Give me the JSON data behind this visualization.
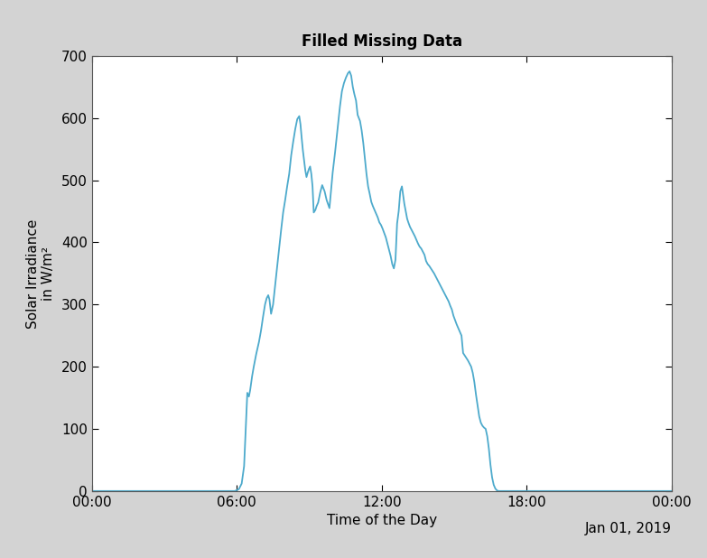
{
  "title": "Filled Missing Data",
  "xlabel": "Time of the Day",
  "ylabel": "Solar Irradiance\nin W/m²",
  "date_label": "Jan 01, 2019",
  "xlim": [
    0,
    1440
  ],
  "ylim": [
    0,
    700
  ],
  "xticks": [
    0,
    360,
    720,
    1080,
    1440
  ],
  "xtick_labels": [
    "00:00",
    "06:00",
    "12:00",
    "18:00",
    "00:00"
  ],
  "yticks": [
    0,
    100,
    200,
    300,
    400,
    500,
    600,
    700
  ],
  "line_color": "#4DAACC",
  "background_color": "#d3d3d3",
  "plot_bg_color": "#ffffff",
  "title_fontsize": 12,
  "label_fontsize": 11,
  "tick_fontsize": 11,
  "line_width": 1.3,
  "data_points": [
    [
      0,
      0
    ],
    [
      355,
      0
    ],
    [
      365,
      3
    ],
    [
      372,
      12
    ],
    [
      378,
      40
    ],
    [
      382,
      100
    ],
    [
      386,
      158
    ],
    [
      390,
      152
    ],
    [
      393,
      162
    ],
    [
      398,
      185
    ],
    [
      402,
      200
    ],
    [
      408,
      220
    ],
    [
      415,
      240
    ],
    [
      420,
      258
    ],
    [
      425,
      280
    ],
    [
      430,
      300
    ],
    [
      434,
      310
    ],
    [
      438,
      315
    ],
    [
      441,
      308
    ],
    [
      445,
      285
    ],
    [
      450,
      300
    ],
    [
      455,
      330
    ],
    [
      460,
      360
    ],
    [
      465,
      390
    ],
    [
      470,
      420
    ],
    [
      475,
      448
    ],
    [
      480,
      468
    ],
    [
      485,
      490
    ],
    [
      490,
      510
    ],
    [
      495,
      540
    ],
    [
      500,
      562
    ],
    [
      505,
      582
    ],
    [
      510,
      598
    ],
    [
      515,
      603
    ],
    [
      518,
      590
    ],
    [
      521,
      568
    ],
    [
      524,
      548
    ],
    [
      527,
      532
    ],
    [
      530,
      516
    ],
    [
      533,
      505
    ],
    [
      536,
      512
    ],
    [
      539,
      518
    ],
    [
      542,
      522
    ],
    [
      545,
      510
    ],
    [
      548,
      490
    ],
    [
      551,
      448
    ],
    [
      555,
      452
    ],
    [
      558,
      458
    ],
    [
      562,
      464
    ],
    [
      567,
      480
    ],
    [
      572,
      492
    ],
    [
      578,
      482
    ],
    [
      583,
      468
    ],
    [
      590,
      455
    ],
    [
      598,
      512
    ],
    [
      604,
      545
    ],
    [
      610,
      582
    ],
    [
      616,
      618
    ],
    [
      621,
      643
    ],
    [
      626,
      656
    ],
    [
      631,
      665
    ],
    [
      636,
      672
    ],
    [
      640,
      675
    ],
    [
      644,
      668
    ],
    [
      648,
      650
    ],
    [
      652,
      638
    ],
    [
      656,
      628
    ],
    [
      660,
      605
    ],
    [
      663,
      600
    ],
    [
      666,
      595
    ],
    [
      670,
      580
    ],
    [
      674,
      560
    ],
    [
      678,
      535
    ],
    [
      682,
      510
    ],
    [
      686,
      490
    ],
    [
      690,
      478
    ],
    [
      694,
      465
    ],
    [
      698,
      458
    ],
    [
      702,
      452
    ],
    [
      706,
      446
    ],
    [
      710,
      440
    ],
    [
      714,
      432
    ],
    [
      718,
      428
    ],
    [
      722,
      422
    ],
    [
      726,
      415
    ],
    [
      730,
      408
    ],
    [
      734,
      398
    ],
    [
      738,
      388
    ],
    [
      742,
      378
    ],
    [
      746,
      365
    ],
    [
      750,
      358
    ],
    [
      754,
      372
    ],
    [
      758,
      430
    ],
    [
      762,
      450
    ],
    [
      766,
      482
    ],
    [
      770,
      490
    ],
    [
      773,
      476
    ],
    [
      776,
      462
    ],
    [
      780,
      448
    ],
    [
      783,
      438
    ],
    [
      786,
      432
    ],
    [
      790,
      425
    ],
    [
      794,
      420
    ],
    [
      798,
      415
    ],
    [
      802,
      410
    ],
    [
      806,
      404
    ],
    [
      810,
      398
    ],
    [
      814,
      393
    ],
    [
      818,
      390
    ],
    [
      822,
      385
    ],
    [
      826,
      380
    ],
    [
      830,
      370
    ],
    [
      834,
      365
    ],
    [
      838,
      362
    ],
    [
      842,
      358
    ],
    [
      846,
      354
    ],
    [
      850,
      350
    ],
    [
      854,
      345
    ],
    [
      858,
      340
    ],
    [
      862,
      335
    ],
    [
      866,
      330
    ],
    [
      870,
      325
    ],
    [
      874,
      320
    ],
    [
      878,
      315
    ],
    [
      882,
      310
    ],
    [
      886,
      305
    ],
    [
      890,
      298
    ],
    [
      894,
      292
    ],
    [
      898,
      282
    ],
    [
      902,
      275
    ],
    [
      906,
      268
    ],
    [
      910,
      262
    ],
    [
      914,
      256
    ],
    [
      918,
      250
    ],
    [
      922,
      222
    ],
    [
      926,
      218
    ],
    [
      930,
      214
    ],
    [
      934,
      210
    ],
    [
      938,
      205
    ],
    [
      942,
      200
    ],
    [
      946,
      190
    ],
    [
      950,
      175
    ],
    [
      954,
      155
    ],
    [
      958,
      138
    ],
    [
      962,
      120
    ],
    [
      966,
      110
    ],
    [
      970,
      105
    ],
    [
      974,
      102
    ],
    [
      978,
      100
    ],
    [
      982,
      88
    ],
    [
      986,
      68
    ],
    [
      990,
      42
    ],
    [
      994,
      22
    ],
    [
      998,
      10
    ],
    [
      1002,
      4
    ],
    [
      1006,
      1
    ],
    [
      1010,
      0
    ],
    [
      1440,
      0
    ]
  ]
}
